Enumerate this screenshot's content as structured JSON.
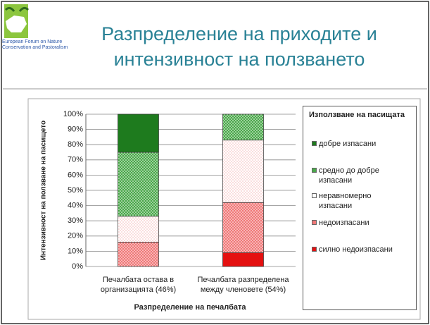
{
  "logo_text": "European Forum on Nature Conservation and Pastoralism",
  "chart_data": {
    "type": "stacked-bar",
    "title": "Разпределение на приходите и интензивност на ползването",
    "x_label": "Разпределение на печалбата",
    "y_label": "Интензивност на ползване на пасището",
    "legend_title": "Използване на пасищата",
    "legend": "right",
    "grid": true,
    "categories": [
      "Печалбата остава в организацията (46%)",
      "Печалбата разпределена между членовете (54%)"
    ],
    "series": [
      {
        "name": "добре изпасани",
        "color": "#1e7b1e",
        "pattern": "solid",
        "values": [
          25,
          0
        ]
      },
      {
        "name": "средно до добре изпасани",
        "color": "#4aa84a",
        "pattern": "dots",
        "values": [
          42,
          17
        ]
      },
      {
        "name": "неравномерно изпасани",
        "color": "#f08a8a",
        "pattern": "sparse-dots",
        "values": [
          17,
          41
        ]
      },
      {
        "name": "недоизпасани",
        "color": "#f07878",
        "pattern": "dots",
        "values": [
          16,
          33
        ]
      },
      {
        "name": "силно недоизпасани",
        "color": "#e41010",
        "pattern": "solid",
        "values": [
          0,
          9
        ]
      }
    ],
    "ylim": [
      0,
      100
    ],
    "yticks": [
      {
        "value": 0,
        "label": "0%"
      },
      {
        "value": 10,
        "label": "10%"
      },
      {
        "value": 20,
        "label": "20%"
      },
      {
        "value": 30,
        "label": "30%"
      },
      {
        "value": 40,
        "label": "40%"
      },
      {
        "value": 50,
        "label": "50%"
      },
      {
        "value": 60,
        "label": "60%"
      },
      {
        "value": 70,
        "label": "70%"
      },
      {
        "value": 80,
        "label": "80%"
      },
      {
        "value": 90,
        "label": "90%"
      },
      {
        "value": 100,
        "label": "100%"
      }
    ]
  }
}
